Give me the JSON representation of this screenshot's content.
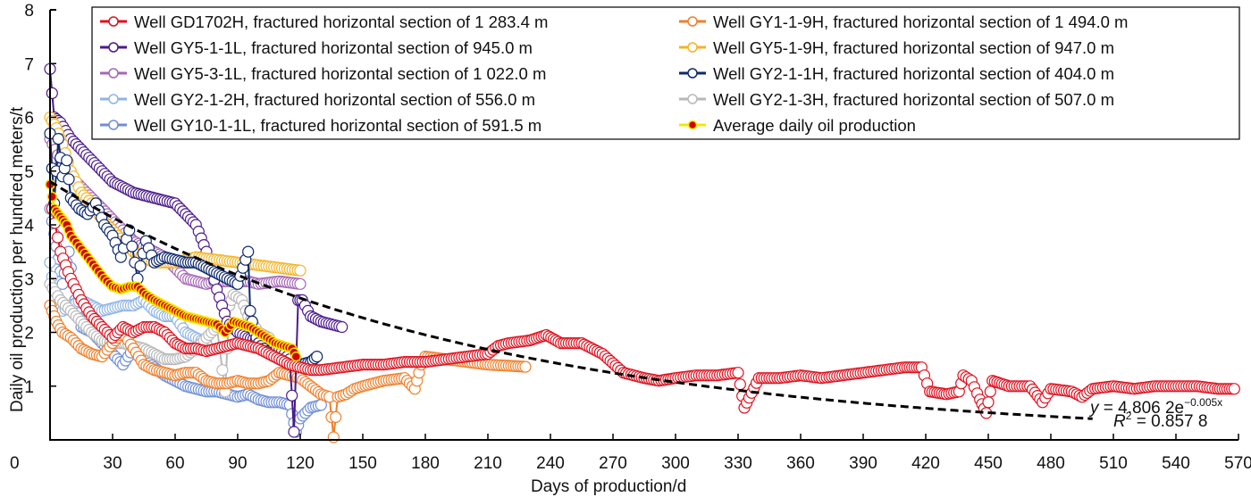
{
  "chart_data": {
    "type": "line",
    "title": "",
    "xlabel": "Days of production/d",
    "ylabel": "Daily oil production per hundred meters/t",
    "xlim": [
      0,
      570
    ],
    "ylim": [
      0,
      8
    ],
    "xticks": [
      0,
      30,
      60,
      90,
      120,
      150,
      180,
      210,
      240,
      270,
      300,
      330,
      360,
      390,
      420,
      450,
      480,
      510,
      540,
      570
    ],
    "yticks": [
      1,
      2,
      3,
      4,
      5,
      6,
      7,
      8
    ],
    "ytick_labels": [
      "1",
      "2",
      "3",
      "4",
      "5",
      "6",
      "7",
      "8"
    ],
    "xtick_labels": [
      "0",
      "30",
      "60",
      "90",
      "120",
      "150",
      "180",
      "210",
      "240",
      "270",
      "300",
      "330",
      "360",
      "390",
      "420",
      "450",
      "480",
      "510",
      "540",
      "570"
    ],
    "grid": false,
    "legend_position": "top",
    "series": [
      {
        "name": "Well GD1702H, fractured horizontal section of 1 283.4 m",
        "color": "#e0101e",
        "marker": "open-circle",
        "x": [
          1,
          5,
          10,
          15,
          20,
          25,
          30,
          35,
          40,
          45,
          50,
          55,
          60,
          65,
          70,
          75,
          80,
          85,
          90,
          95,
          100,
          105,
          110,
          115,
          120,
          125,
          130,
          140,
          150,
          160,
          170,
          180,
          190,
          200,
          210,
          215,
          220,
          230,
          238,
          245,
          255,
          265,
          275,
          285,
          292,
          300,
          310,
          320,
          330,
          333,
          340,
          350,
          360,
          370,
          380,
          390,
          400,
          410,
          418,
          422,
          430,
          436,
          438,
          442,
          446,
          449,
          452,
          460,
          470,
          476,
          480,
          490,
          495,
          500,
          510,
          520,
          530,
          540,
          550,
          560,
          568
        ],
        "y": [
          4.3,
          3.5,
          3.0,
          2.6,
          2.3,
          2.1,
          1.9,
          2.1,
          2.0,
          2.1,
          2.1,
          2.0,
          1.8,
          1.7,
          1.7,
          1.65,
          1.7,
          1.75,
          1.8,
          1.75,
          1.7,
          1.6,
          1.5,
          1.4,
          1.35,
          1.3,
          1.3,
          1.35,
          1.4,
          1.4,
          1.45,
          1.45,
          1.5,
          1.55,
          1.6,
          1.75,
          1.8,
          1.85,
          1.95,
          1.8,
          1.8,
          1.6,
          1.25,
          1.15,
          1.1,
          1.15,
          1.2,
          1.2,
          1.25,
          0.6,
          1.15,
          1.15,
          1.2,
          1.15,
          1.2,
          1.25,
          1.3,
          1.35,
          1.35,
          0.9,
          0.85,
          0.9,
          1.2,
          1.1,
          0.75,
          0.5,
          1.1,
          1.0,
          1.0,
          0.7,
          0.95,
          0.9,
          0.8,
          0.95,
          1.0,
          0.95,
          1.0,
          1.0,
          1.0,
          0.95,
          0.95
        ]
      },
      {
        "name": "Well GY5-1-1L, fractured horizontal section of 945.0 m",
        "color": "#4b1a8c",
        "marker": "open-circle",
        "x": [
          0,
          2,
          5,
          10,
          15,
          20,
          30,
          40,
          50,
          60,
          70,
          75,
          80,
          85,
          90,
          95,
          100,
          105,
          110,
          115,
          117,
          119,
          121,
          125,
          130,
          135,
          140
        ],
        "y": [
          6.9,
          6.0,
          5.9,
          5.6,
          5.4,
          5.2,
          4.8,
          4.6,
          4.5,
          4.4,
          4.0,
          3.5,
          2.8,
          2.2,
          2.0,
          1.9,
          1.85,
          1.8,
          1.7,
          1.5,
          0.15,
          2.6,
          2.6,
          2.3,
          2.2,
          2.15,
          2.1
        ]
      },
      {
        "name": "Well GY5-3-1L, fractured horizontal section of 1 022.0 m",
        "color": "#a566b5",
        "marker": "open-circle",
        "x": [
          0,
          5,
          10,
          15,
          20,
          25,
          30,
          35,
          40,
          45,
          50,
          55,
          60,
          65,
          70,
          75,
          80,
          85,
          90,
          95,
          100,
          110,
          120
        ],
        "y": [
          5.6,
          5.2,
          4.9,
          4.7,
          4.5,
          4.3,
          4.1,
          3.9,
          3.7,
          3.6,
          3.5,
          3.4,
          3.2,
          3.0,
          2.95,
          2.9,
          2.95,
          2.95,
          2.95,
          2.95,
          2.9,
          2.95,
          2.9
        ]
      },
      {
        "name": "Well GY2-1-2H, fractured horizontal section of 556.0 m",
        "color": "#8fb4e6",
        "marker": "open-circle",
        "x": [
          0,
          3,
          6,
          10,
          15,
          20,
          25,
          30,
          35,
          40,
          45,
          50,
          55,
          60,
          65,
          70,
          75
        ],
        "y": [
          3.3,
          2.5,
          2.4,
          2.5,
          2.6,
          2.5,
          2.4,
          2.45,
          2.5,
          2.5,
          2.6,
          2.4,
          2.3,
          2.3,
          2.0,
          1.9,
          1.8
        ]
      },
      {
        "name": "Well GY10-1-1L, fractured horizontal section of 591.5 m",
        "color": "#6f8ed6",
        "marker": "open-circle",
        "x": [
          0,
          3,
          6,
          9,
          12,
          15,
          20,
          25,
          30,
          35,
          40,
          45,
          50,
          55,
          60,
          65,
          70,
          75,
          80,
          85,
          90,
          95,
          100,
          105,
          110,
          115,
          118,
          120,
          125,
          130
        ],
        "y": [
          4.3,
          3.6,
          2.9,
          3.5,
          2.6,
          2.1,
          2.0,
          1.8,
          1.6,
          1.4,
          1.7,
          1.5,
          1.35,
          1.2,
          1.1,
          1.0,
          0.95,
          0.9,
          0.9,
          0.85,
          0.8,
          0.85,
          0.75,
          0.7,
          0.7,
          0.65,
          0.15,
          0.4,
          0.6,
          0.65
        ]
      },
      {
        "name": "Well GY1-1-9H, fractured horizontal section of 1 494.0 m",
        "color": "#f07f2a",
        "marker": "open-circle",
        "x": [
          0,
          3,
          6,
          10,
          15,
          20,
          25,
          30,
          35,
          40,
          45,
          50,
          55,
          60,
          65,
          70,
          75,
          80,
          85,
          90,
          95,
          100,
          105,
          110,
          115,
          120,
          125,
          130,
          134,
          136,
          138,
          142,
          146,
          150,
          160,
          170,
          175,
          178,
          180,
          190,
          200,
          210,
          220,
          228
        ],
        "y": [
          2.5,
          2.2,
          2.0,
          1.9,
          1.7,
          1.6,
          1.55,
          1.8,
          2.0,
          1.7,
          1.4,
          1.3,
          1.25,
          1.2,
          1.25,
          1.25,
          1.1,
          1.05,
          1.05,
          1.1,
          1.05,
          1.05,
          1.1,
          1.25,
          1.2,
          1.15,
          1.0,
          0.85,
          0.8,
          0.05,
          0.8,
          0.85,
          0.95,
          1.0,
          1.1,
          1.15,
          0.95,
          1.4,
          1.55,
          1.5,
          1.45,
          1.4,
          1.38,
          1.36
        ]
      },
      {
        "name": "Well GY5-1-9H, fractured horizontal section of 947.0 m",
        "color": "#f5b324",
        "marker": "open-circle",
        "x": [
          0,
          3,
          6,
          10,
          15,
          20,
          25,
          30,
          35,
          40,
          45,
          50,
          55,
          60,
          65,
          70,
          80,
          90,
          100,
          110,
          120
        ],
        "y": [
          6.0,
          5.8,
          5.5,
          5.0,
          4.6,
          4.4,
          4.1,
          3.9,
          3.7,
          3.5,
          3.4,
          3.3,
          3.3,
          3.3,
          3.35,
          3.4,
          3.35,
          3.3,
          3.25,
          3.2,
          3.15
        ]
      },
      {
        "name": "Well GY2-1-1H, fractured horizontal section of 404.0 m",
        "color": "#0e2a6e",
        "marker": "open-circle",
        "x": [
          0,
          2,
          4,
          6,
          8,
          10,
          14,
          18,
          22,
          26,
          30,
          34,
          38,
          42,
          46,
          50,
          55,
          60,
          65,
          70,
          75,
          80,
          85,
          90,
          95,
          96,
          98,
          100,
          105,
          110,
          115,
          120,
          125,
          128
        ],
        "y": [
          5.7,
          4.4,
          5.6,
          4.9,
          5.2,
          4.5,
          4.3,
          4.2,
          4.4,
          4.0,
          3.8,
          3.4,
          3.9,
          3.0,
          3.7,
          3.3,
          3.4,
          3.35,
          3.3,
          3.3,
          3.2,
          3.1,
          3.0,
          2.9,
          3.5,
          2.4,
          2.0,
          1.8,
          1.6,
          1.5,
          1.4,
          1.4,
          1.45,
          1.55
        ]
      },
      {
        "name": "Well GY2-1-3H, fractured horizontal section of 507.0 m",
        "color": "#b8b8b8",
        "marker": "open-circle",
        "x": [
          0,
          5,
          10,
          15,
          20,
          25,
          30,
          35,
          40,
          45,
          50,
          55,
          60,
          65,
          70,
          75,
          80,
          84,
          86,
          88,
          92,
          95,
          100,
          105
        ],
        "y": [
          2.9,
          2.6,
          2.4,
          2.2,
          2.0,
          1.85,
          1.8,
          1.8,
          1.75,
          1.7,
          1.6,
          1.5,
          1.5,
          1.55,
          1.7,
          1.9,
          2.1,
          0.9,
          2.5,
          2.7,
          2.6,
          2.3,
          2.0,
          1.9
        ]
      },
      {
        "name": "Average daily oil production",
        "color": "#f5e800",
        "marker": "filled-red-circle",
        "marker_color": "#d40000",
        "x": [
          0,
          2,
          4,
          6,
          8,
          10,
          14,
          18,
          22,
          26,
          30,
          34,
          38,
          42,
          46,
          50,
          55,
          60,
          65,
          70,
          75,
          80,
          84,
          88,
          92,
          96,
          100,
          104,
          108,
          112,
          116,
          118
        ],
        "y": [
          4.75,
          4.3,
          4.2,
          4.1,
          4.0,
          3.8,
          3.6,
          3.4,
          3.2,
          3.0,
          2.85,
          2.8,
          2.85,
          2.85,
          2.7,
          2.6,
          2.5,
          2.4,
          2.3,
          2.25,
          2.2,
          2.15,
          2.0,
          2.2,
          2.15,
          2.1,
          2.0,
          1.9,
          1.8,
          1.75,
          1.7,
          1.55
        ]
      },
      {
        "name": "Exponential fit",
        "color": "#000000",
        "style": "dashed",
        "equation": "y = 4.806 2e^(-0.005x)",
        "a": 4.8062,
        "b": -0.005,
        "r2": 0.8578,
        "x_range": [
          0,
          500
        ]
      }
    ],
    "annotations": {
      "equation_main": "y = 4.806 2e",
      "equation_exp": "−0.005x",
      "r2_prefix": "R",
      "r2_sup": "2",
      "r2_value": " = 0.857 8"
    }
  }
}
